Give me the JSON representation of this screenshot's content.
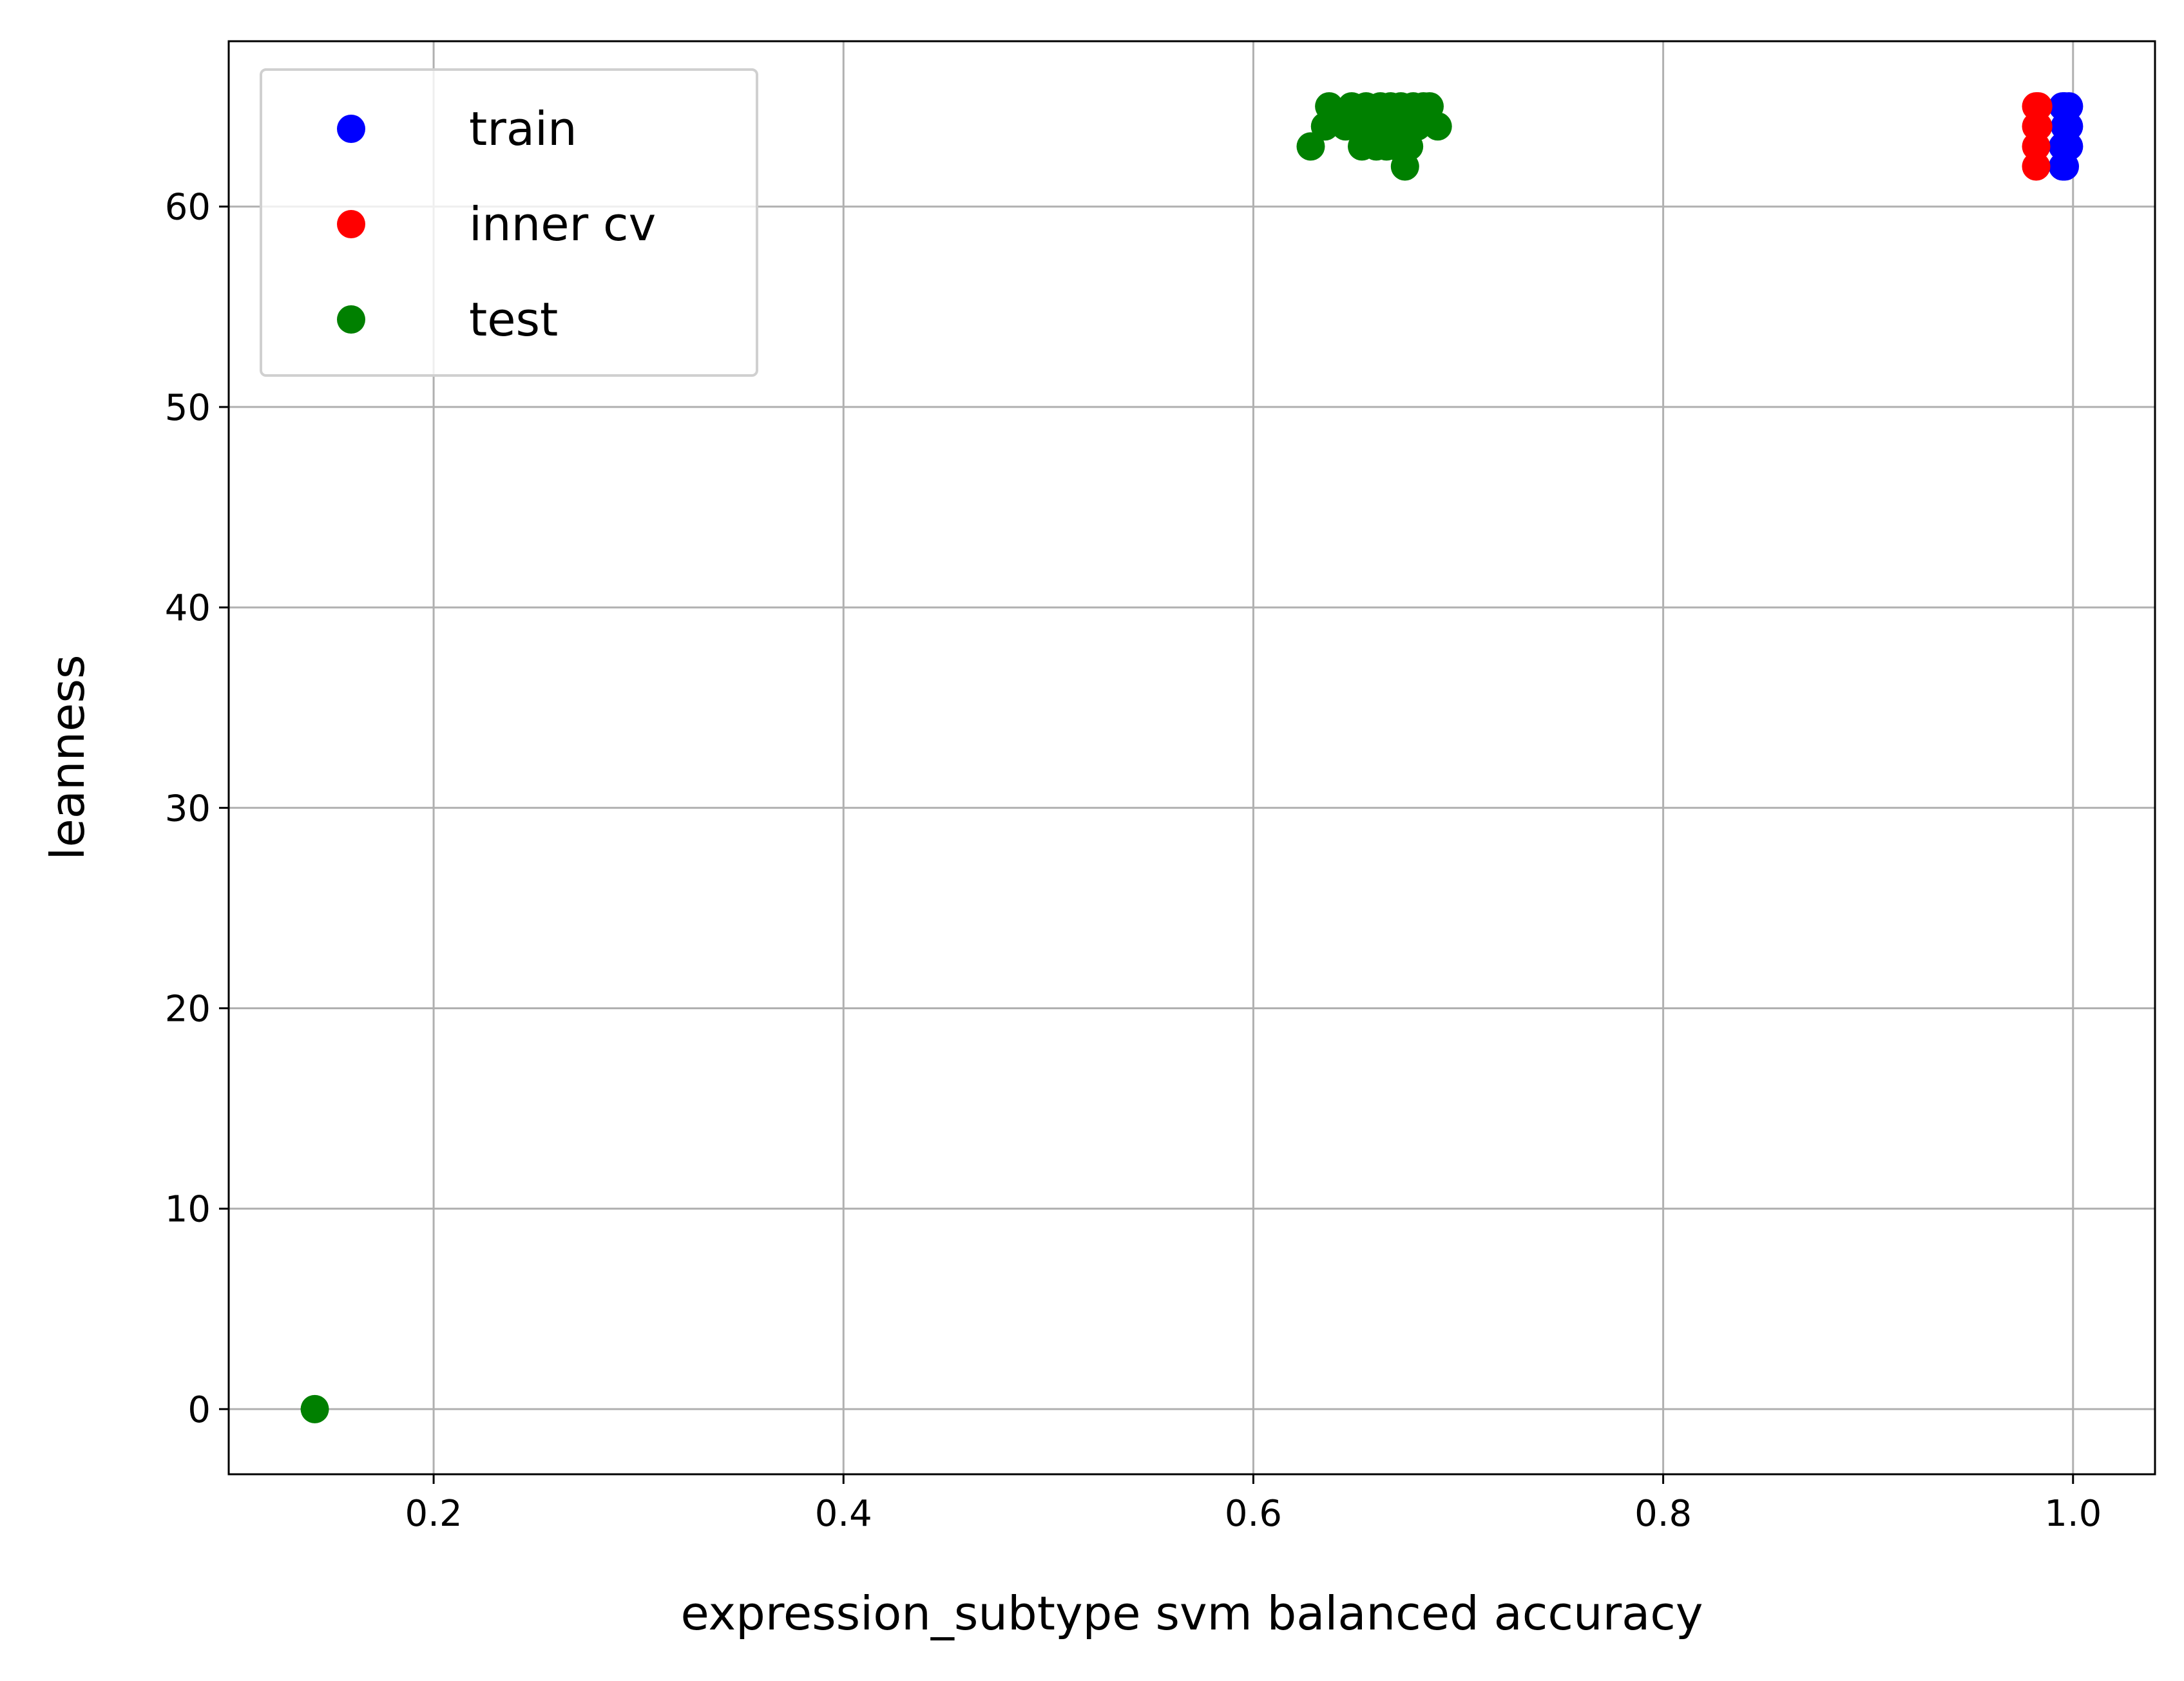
{
  "chart_data": {
    "type": "scatter",
    "xlabel": "expression_subtype svm balanced accuracy",
    "ylabel": "leanness",
    "xlim": [
      0.1,
      1.04
    ],
    "ylim": [
      -3.25,
      68.25
    ],
    "xticks": [
      0.2,
      0.4,
      0.6,
      0.8,
      1.0
    ],
    "xtick_labels": [
      "0.2",
      "0.4",
      "0.6",
      "0.8",
      "1.0"
    ],
    "yticks": [
      0,
      10,
      20,
      30,
      40,
      50,
      60
    ],
    "ytick_labels": [
      "0",
      "10",
      "20",
      "30",
      "40",
      "50",
      "60"
    ],
    "grid": true,
    "legend_position": "top-left",
    "series": [
      {
        "name": "train",
        "color": "#0000ff",
        "points": [
          [
            0.995,
            65
          ],
          [
            0.998,
            65
          ],
          [
            0.996,
            64
          ],
          [
            0.998,
            64
          ],
          [
            0.995,
            63
          ],
          [
            0.998,
            63
          ],
          [
            0.995,
            62
          ],
          [
            0.996,
            62
          ],
          [
            0.997,
            64
          ],
          [
            0.996,
            65
          ]
        ]
      },
      {
        "name": "inner cv",
        "color": "#ff0000",
        "points": [
          [
            0.982,
            65
          ],
          [
            0.982,
            64
          ],
          [
            0.982,
            63
          ],
          [
            0.982,
            62
          ],
          [
            0.983,
            64
          ],
          [
            0.983,
            65
          ]
        ]
      },
      {
        "name": "test",
        "color": "#008000",
        "points": [
          [
            0.142,
            0
          ],
          [
            0.628,
            63
          ],
          [
            0.635,
            64
          ],
          [
            0.637,
            65
          ],
          [
            0.645,
            64
          ],
          [
            0.648,
            65
          ],
          [
            0.652,
            64
          ],
          [
            0.653,
            63
          ],
          [
            0.655,
            65
          ],
          [
            0.658,
            64
          ],
          [
            0.66,
            63
          ],
          [
            0.662,
            65
          ],
          [
            0.664,
            64
          ],
          [
            0.665,
            63
          ],
          [
            0.667,
            65
          ],
          [
            0.668,
            64
          ],
          [
            0.67,
            63
          ],
          [
            0.672,
            65
          ],
          [
            0.674,
            62
          ],
          [
            0.675,
            64
          ],
          [
            0.676,
            63
          ],
          [
            0.678,
            65
          ],
          [
            0.68,
            64
          ],
          [
            0.683,
            65
          ],
          [
            0.686,
            65
          ],
          [
            0.69,
            64
          ]
        ]
      }
    ]
  }
}
